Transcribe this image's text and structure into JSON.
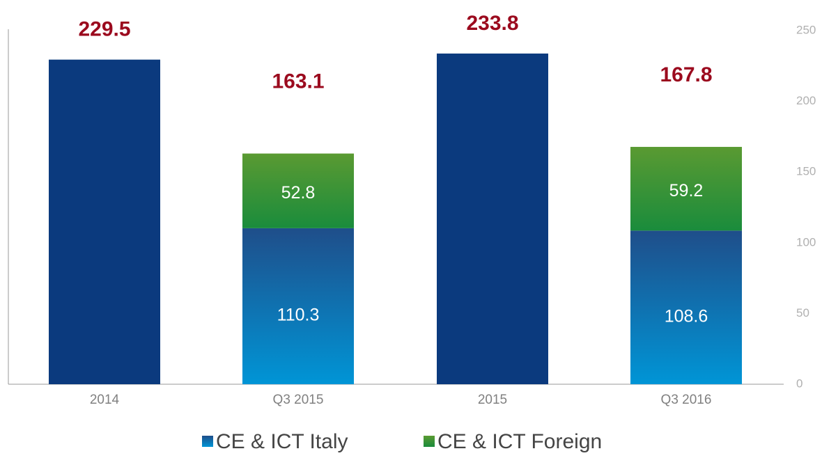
{
  "chart_data": {
    "type": "bar",
    "categories": [
      "2014",
      "Q3 2015",
      "2015",
      "Q3 2016"
    ],
    "series": [
      {
        "name": "CE & ICT Italy",
        "color": "#1f4e8a",
        "values": [
          null,
          110.3,
          null,
          108.6
        ]
      },
      {
        "name": "CE & ICT Foreign",
        "color": "#5a9a32",
        "values": [
          null,
          52.8,
          null,
          59.2
        ]
      }
    ],
    "totals": {
      "color": "#0b3a7e",
      "values": [
        229.5,
        163.1,
        233.8,
        167.8
      ]
    },
    "ylim": [
      0,
      250
    ],
    "yticks": [
      0,
      50,
      100,
      150,
      200,
      250
    ],
    "y_axis_side": "right",
    "legend": "bottom"
  }
}
